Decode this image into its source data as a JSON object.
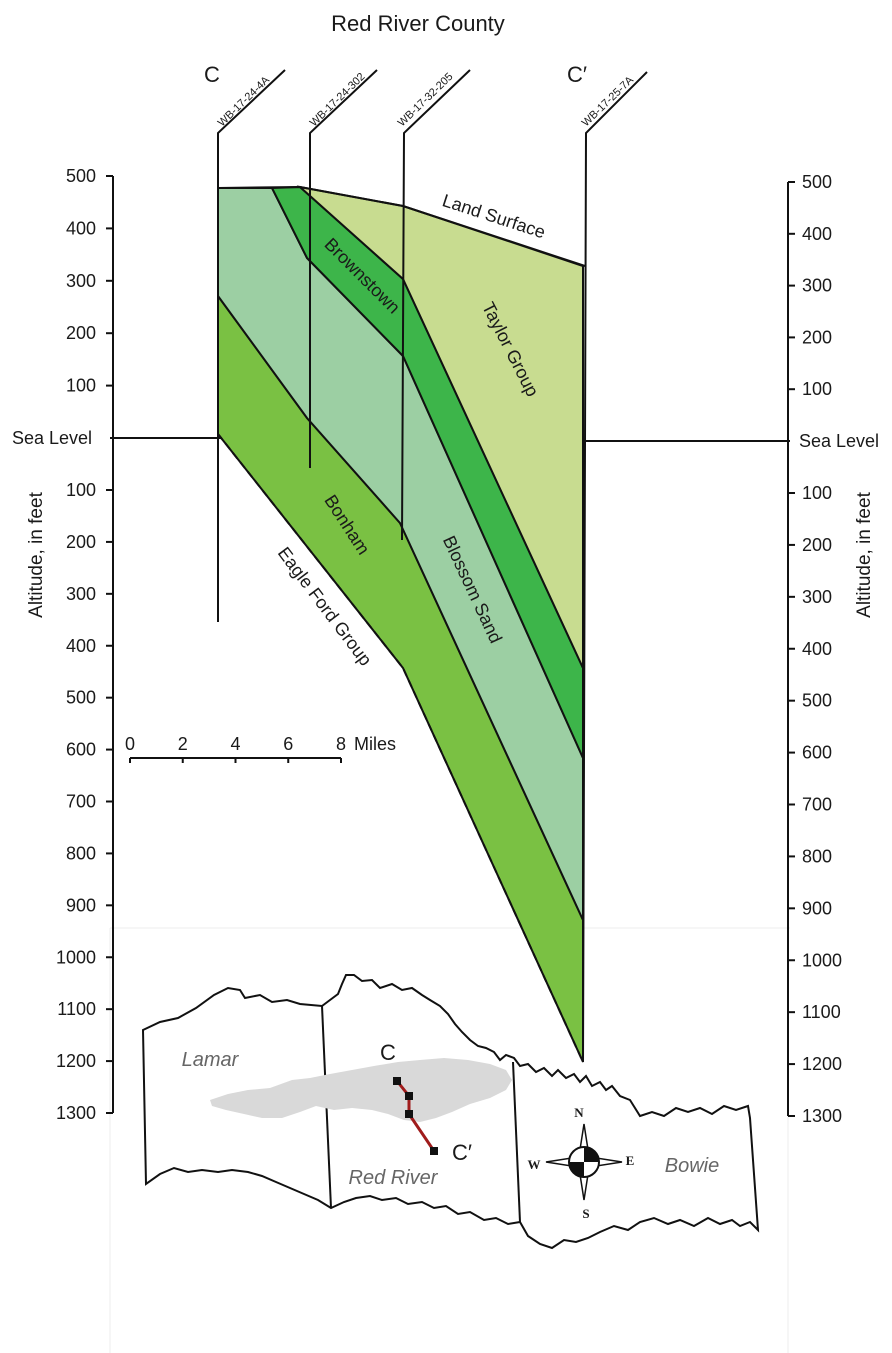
{
  "title": "Red River County",
  "section": {
    "start_label": "C",
    "end_label": "C′",
    "wells": [
      "WB-17-24-4A",
      "WB-17-24-302",
      "WB-17-32-205",
      "WB-17-25-7A"
    ]
  },
  "axes": {
    "left_title": "Altitude, in feet",
    "right_title": "Altitude, in feet",
    "sea_level_label": "Sea Level",
    "above_ticks": [
      "500",
      "400",
      "300",
      "200",
      "100"
    ],
    "below_ticks": [
      "100",
      "200",
      "300",
      "400",
      "500",
      "600",
      "700",
      "800",
      "900",
      "1000",
      "1100",
      "1200",
      "1300"
    ]
  },
  "units": {
    "land_surface": "Land Surface",
    "brownstown": "Brownstown",
    "taylor": "Taylor Group",
    "bonham": "Bonham",
    "blossom": "Blossom Sand",
    "eagle_ford": "Eagle Ford Group"
  },
  "colors": {
    "taylor": "#c8dc90",
    "brownstown": "#3db54a",
    "blossom": "#9ccfa3",
    "bonham": "#7ac143",
    "map_shade": "#d9d9d9",
    "section_line": "#a01c1c"
  },
  "scale_bar": {
    "ticks": [
      "0",
      "2",
      "4",
      "6",
      "8"
    ],
    "unit": "Miles"
  },
  "map": {
    "counties": [
      "Lamar",
      "Red River",
      "Bowie"
    ],
    "start_label": "C",
    "end_label": "C′",
    "compass": {
      "n": "N",
      "s": "S",
      "e": "E",
      "w": "W"
    }
  }
}
